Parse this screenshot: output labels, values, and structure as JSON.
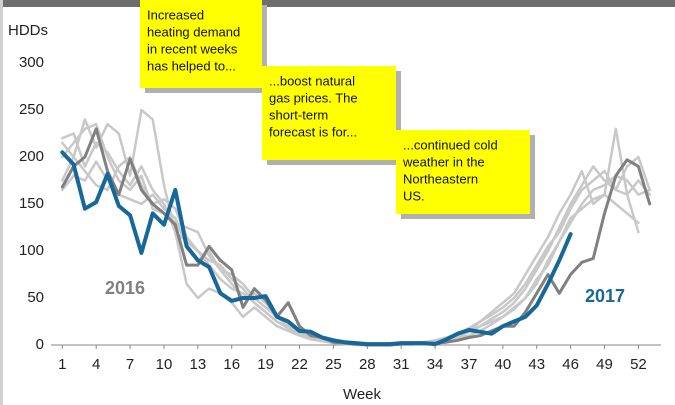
{
  "chart_data": {
    "type": "line",
    "ylabel": "HDDs",
    "xlabel": "Week",
    "x": [
      1,
      2,
      3,
      4,
      5,
      6,
      7,
      8,
      9,
      10,
      11,
      12,
      13,
      14,
      15,
      16,
      17,
      18,
      19,
      20,
      21,
      22,
      23,
      24,
      25,
      26,
      27,
      28,
      29,
      30,
      31,
      32,
      33,
      34,
      35,
      36,
      37,
      38,
      39,
      40,
      41,
      42,
      43,
      44,
      45,
      46,
      47,
      48,
      49,
      50,
      51,
      52,
      53
    ],
    "xlim": [
      0,
      54
    ],
    "xticks": [
      1,
      4,
      7,
      10,
      13,
      16,
      19,
      22,
      25,
      28,
      31,
      34,
      37,
      40,
      43,
      46,
      49,
      52
    ],
    "ylim": [
      0,
      300
    ],
    "yticks": [
      0,
      50,
      100,
      150,
      200,
      250,
      300
    ],
    "grid": false,
    "series": [
      {
        "color": "#c8c8c8",
        "values": [
          220,
          225,
          190,
          215,
          205,
          185,
          170,
          190,
          165,
          150,
          120,
          110,
          100,
          85,
          70,
          60,
          55,
          45,
          35,
          25,
          18,
          12,
          8,
          5,
          3,
          2,
          1,
          1,
          0,
          0,
          1,
          1,
          2,
          3,
          5,
          8,
          10,
          15,
          22,
          30,
          38,
          50,
          65,
          90,
          110,
          130,
          150,
          165,
          170,
          180,
          175,
          160,
          165
        ]
      },
      {
        "color": "#c8c8c8",
        "values": [
          175,
          200,
          240,
          210,
          235,
          225,
          180,
          250,
          240,
          170,
          120,
          65,
          50,
          60,
          55,
          45,
          30,
          40,
          30,
          20,
          15,
          10,
          6,
          4,
          2,
          1,
          0,
          0,
          0,
          1,
          1,
          2,
          2,
          4,
          6,
          10,
          15,
          25,
          35,
          45,
          55,
          75,
          95,
          115,
          140,
          160,
          185,
          150,
          160,
          230,
          160,
          120,
          null
        ]
      },
      {
        "color": "#c8c8c8",
        "values": [
          200,
          215,
          230,
          235,
          200,
          175,
          165,
          180,
          145,
          140,
          130,
          125,
          120,
          95,
          80,
          75,
          65,
          50,
          40,
          30,
          20,
          14,
          9,
          6,
          3,
          2,
          1,
          0,
          0,
          0,
          1,
          2,
          3,
          5,
          7,
          10,
          15,
          20,
          28,
          35,
          45,
          60,
          80,
          100,
          125,
          150,
          170,
          190,
          175,
          165,
          190,
          200,
          165
        ]
      },
      {
        "color": "#c8c8c8",
        "values": [
          165,
          180,
          175,
          195,
          175,
          160,
          155,
          150,
          160,
          145,
          135,
          105,
          90,
          100,
          80,
          65,
          50,
          55,
          45,
          30,
          22,
          15,
          10,
          6,
          3,
          1,
          1,
          0,
          0,
          1,
          1,
          1,
          2,
          3,
          5,
          9,
          14,
          20,
          25,
          30,
          40,
          50,
          70,
          85,
          110,
          135,
          145,
          155,
          160,
          150,
          140,
          130,
          null
        ]
      },
      {
        "color": "#c8c8c8",
        "values": [
          215,
          200,
          185,
          170,
          165,
          190,
          200,
          170,
          150,
          155,
          145,
          115,
          100,
          90,
          85,
          70,
          60,
          45,
          35,
          25,
          18,
          12,
          8,
          5,
          3,
          2,
          1,
          1,
          1,
          1,
          1,
          2,
          3,
          5,
          8,
          12,
          18,
          25,
          32,
          40,
          50,
          65,
          85,
          105,
          120,
          145,
          165,
          175,
          185,
          165,
          160,
          175,
          160
        ]
      },
      {
        "name": "2016",
        "color": "#808080",
        "values": [
          168,
          190,
          200,
          230,
          185,
          160,
          198,
          165,
          150,
          140,
          128,
          85,
          85,
          105,
          90,
          80,
          40,
          60,
          48,
          30,
          45,
          20,
          10,
          8,
          3,
          2,
          1,
          0,
          0,
          0,
          1,
          1,
          2,
          2,
          3,
          5,
          8,
          10,
          15,
          20,
          20,
          35,
          55,
          75,
          55,
          75,
          88,
          92,
          140,
          180,
          197,
          190,
          150
        ]
      },
      {
        "name": "2017",
        "color": "#17689a",
        "values": [
          205,
          192,
          145,
          152,
          182,
          148,
          138,
          98,
          140,
          128,
          165,
          105,
          90,
          83,
          55,
          47,
          50,
          50,
          52,
          30,
          25,
          15,
          14,
          8,
          5,
          3,
          2,
          1,
          1,
          1,
          2,
          2,
          2,
          1,
          6,
          12,
          16,
          14,
          12,
          20,
          25,
          30,
          42,
          65,
          90,
          118,
          null,
          null,
          null,
          null,
          null,
          null,
          null
        ]
      }
    ],
    "annotations": [
      {
        "lines": [
          "Increased",
          "heating demand",
          "in recent weeks",
          "has helped to..."
        ]
      },
      {
        "lines": [
          "...boost natural",
          "gas prices. The",
          "short-term",
          "forecast is for..."
        ]
      },
      {
        "lines": [
          "...continued cold",
          "weather in the",
          "Northeastern",
          "US."
        ]
      }
    ]
  }
}
